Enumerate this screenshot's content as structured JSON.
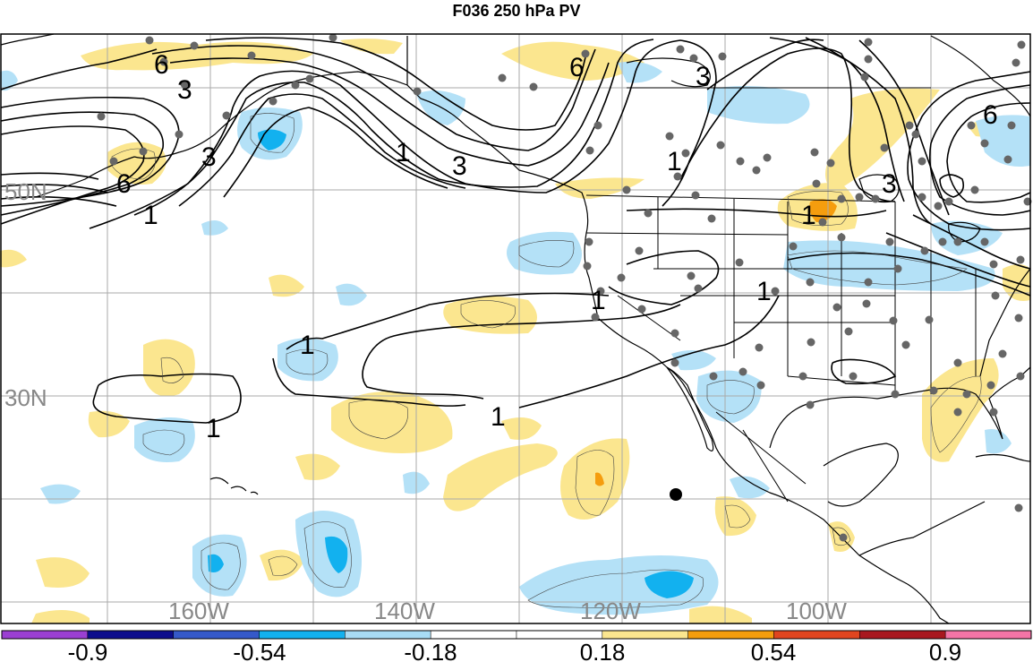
{
  "title": "F036 250 hPa PV",
  "latitude_labels": [
    "50N",
    "30N"
  ],
  "longitude_labels": [
    "160W",
    "140W",
    "120W",
    "100W"
  ],
  "contour_labels": [
    {
      "text": "6"
    },
    {
      "text": "3"
    },
    {
      "text": "3"
    },
    {
      "text": "6"
    },
    {
      "text": "1"
    },
    {
      "text": "6"
    },
    {
      "text": "3"
    },
    {
      "text": "1"
    },
    {
      "text": "3"
    },
    {
      "text": "1"
    },
    {
      "text": "1"
    },
    {
      "text": "6"
    },
    {
      "text": "1"
    },
    {
      "text": "1"
    },
    {
      "text": "1"
    },
    {
      "text": "1"
    },
    {
      "text": "1"
    },
    {
      "text": "3"
    }
  ],
  "colorbar": {
    "colors": [
      "#9b3fd2",
      "#0c0c8c",
      "#3559c9",
      "#12b1ef",
      "#a8dcf5",
      "#ffffff",
      "#ffffff",
      "#fbe68f",
      "#f59d0e",
      "#e0451f",
      "#a8181f",
      "#f374a6"
    ],
    "labels": [
      "-0.9",
      "-0.54",
      "-0.18",
      "0.18",
      "0.54",
      "0.9"
    ]
  },
  "colors": {
    "neg_light": "#b4e1f7",
    "neg_mid": "#12b1ef",
    "pos_light": "#fbe68f",
    "pos_mid": "#f59d0e",
    "station": "#666666",
    "contour": "#000000"
  }
}
